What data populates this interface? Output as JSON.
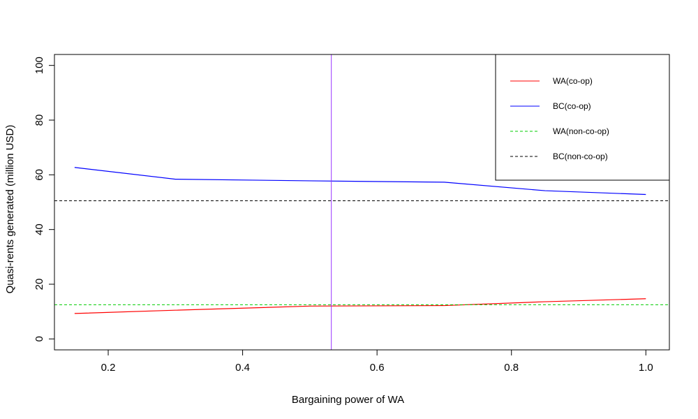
{
  "chart_data": {
    "type": "line",
    "title": "",
    "xlabel": "Bargaining power of WA",
    "ylabel": "Quasi-rents generated (million USD)",
    "xlim": [
      0.12,
      1.035
    ],
    "ylim": [
      -4,
      104
    ],
    "xticks": [
      0.2,
      0.4,
      0.6,
      0.8,
      1.0
    ],
    "xtick_labels": [
      "0.2",
      "0.4",
      "0.6",
      "0.8",
      "1.0"
    ],
    "yticks": [
      0,
      20,
      40,
      60,
      80,
      100
    ],
    "ytick_labels": [
      "0",
      "20",
      "40",
      "60",
      "80",
      "100"
    ],
    "grid": false,
    "legend_position": "top-right",
    "series": [
      {
        "name": "WA(co-op)",
        "color": "#ff0000",
        "dash": "solid",
        "x": [
          0.15,
          0.3,
          0.5,
          0.7,
          0.85,
          1.0
        ],
        "y": [
          9.3,
          10.5,
          12.0,
          12.2,
          13.6,
          14.7
        ]
      },
      {
        "name": "BC(co-op)",
        "color": "#0000ff",
        "dash": "solid",
        "x": [
          0.15,
          0.3,
          0.5,
          0.7,
          0.85,
          1.0
        ],
        "y": [
          62.7,
          58.4,
          57.8,
          57.3,
          54.2,
          52.8
        ]
      },
      {
        "name": "WA(non-co-op)",
        "color": "#00cc00",
        "dash": "dashed",
        "type": "hline",
        "y": 12.5
      },
      {
        "name": "BC(non-co-op)",
        "color": "#000000",
        "dash": "dashed",
        "type": "hline",
        "y": 50.5
      }
    ],
    "vline": {
      "x": 0.532,
      "color": "#9933ff"
    }
  }
}
